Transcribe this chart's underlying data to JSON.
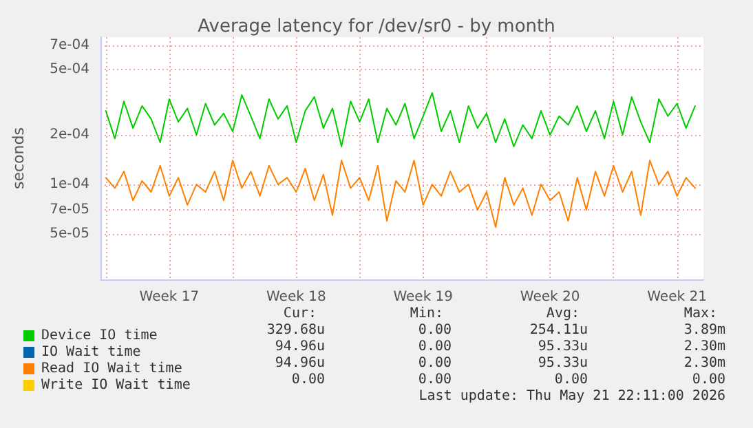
{
  "chart_data": {
    "type": "line",
    "title": "Average latency for /dev/sr0 - by month",
    "ylabel": "seconds",
    "log": "y",
    "grid": true,
    "legend": "bottom left",
    "marker": "none",
    "line_style": "solid",
    "x": [
      "2026-04-20T00:00",
      "2026-04-20T12:00",
      "2026-04-21T00:00",
      "2026-04-21T12:00",
      "2026-04-22T00:00",
      "2026-04-22T12:00",
      "2026-04-23T00:00",
      "2026-04-23T12:00",
      "2026-04-24T00:00",
      "2026-04-24T12:00",
      "2026-04-25T00:00",
      "2026-04-25T12:00",
      "2026-04-26T00:00",
      "2026-04-26T12:00",
      "2026-04-27T00:00",
      "2026-04-27T12:00",
      "2026-04-28T00:00",
      "2026-04-28T12:00",
      "2026-04-29T00:00",
      "2026-04-29T12:00",
      "2026-04-30T00:00",
      "2026-04-30T12:00",
      "2026-05-01T00:00",
      "2026-05-01T12:00",
      "2026-05-02T00:00",
      "2026-05-02T12:00",
      "2026-05-03T00:00",
      "2026-05-03T12:00",
      "2026-05-04T00:00",
      "2026-05-04T12:00",
      "2026-05-05T00:00",
      "2026-05-05T12:00",
      "2026-05-06T00:00",
      "2026-05-06T12:00",
      "2026-05-07T00:00",
      "2026-05-07T12:00",
      "2026-05-08T00:00",
      "2026-05-08T12:00",
      "2026-05-09T00:00",
      "2026-05-09T12:00",
      "2026-05-10T00:00",
      "2026-05-10T12:00",
      "2026-05-11T00:00",
      "2026-05-11T12:00",
      "2026-05-12T00:00",
      "2026-05-12T12:00",
      "2026-05-13T00:00",
      "2026-05-13T12:00",
      "2026-05-14T00:00",
      "2026-05-14T12:00",
      "2026-05-15T00:00",
      "2026-05-15T12:00",
      "2026-05-16T00:00",
      "2026-05-16T12:00",
      "2026-05-17T00:00",
      "2026-05-17T12:00",
      "2026-05-18T00:00",
      "2026-05-18T12:00",
      "2026-05-19T00:00",
      "2026-05-19T12:00",
      "2026-05-20T00:00",
      "2026-05-20T12:00",
      "2026-05-21T00:00",
      "2026-05-21T12:00",
      "2026-05-22T00:00",
      "2026-05-22T12:00"
    ],
    "xlim": [
      "2026-04-19T17:00",
      "2026-05-22T23:00"
    ],
    "xticks": [
      {
        "value": "2026-04-20T00:00",
        "label": null
      },
      {
        "value": "2026-04-23T12:00",
        "label": "Week 17"
      },
      {
        "value": "2026-04-27T00:00",
        "label": null
      },
      {
        "value": "2026-04-30T12:00",
        "label": "Week 18"
      },
      {
        "value": "2026-05-04T00:00",
        "label": null
      },
      {
        "value": "2026-05-07T12:00",
        "label": "Week 19"
      },
      {
        "value": "2026-05-11T00:00",
        "label": null
      },
      {
        "value": "2026-05-14T12:00",
        "label": "Week 20"
      },
      {
        "value": "2026-05-18T00:00",
        "label": null
      },
      {
        "value": "2026-05-21T12:00",
        "label": "Week 21"
      }
    ],
    "ylim": [
      2.65e-05,
      0.000785
    ],
    "yticks": [
      {
        "value": 5e-05,
        "label": "5e-05"
      },
      {
        "value": 7e-05,
        "label": "7e-05"
      },
      {
        "value": 0.0001,
        "label": "1e-04"
      },
      {
        "value": 0.0002,
        "label": "2e-04"
      },
      {
        "value": 0.0005,
        "label": "5e-04"
      },
      {
        "value": 0.0007,
        "label": "7e-04"
      }
    ],
    "series": [
      {
        "name": "Device IO time",
        "color": "#00cc00",
        "values": [
          0.00028,
          0.00019,
          0.00032,
          0.00022,
          0.0003,
          0.00025,
          0.00018,
          0.00033,
          0.00024,
          0.00029,
          0.0002,
          0.00031,
          0.00023,
          0.00027,
          0.00021,
          0.00035,
          0.00026,
          0.00019,
          0.00033,
          0.00025,
          0.0003,
          0.00018,
          0.00028,
          0.00034,
          0.00022,
          0.00029,
          0.00017,
          0.00032,
          0.00024,
          0.00033,
          0.00018,
          0.00029,
          0.00023,
          0.00031,
          0.00019,
          0.00026,
          0.00036,
          0.00021,
          0.00028,
          0.00018,
          0.0003,
          0.00022,
          0.00027,
          0.00018,
          0.00025,
          0.00017,
          0.00023,
          0.00019,
          0.00028,
          0.0002,
          0.00026,
          0.00023,
          0.0003,
          0.00021,
          0.00028,
          0.00019,
          0.00032,
          0.0002,
          0.00034,
          0.00024,
          0.00018,
          0.00033,
          0.00026,
          0.00031,
          0.00022,
          0.0003
        ]
      },
      {
        "name": "IO Wait time",
        "color": "#0066b3",
        "values": [
          null,
          null,
          null,
          null,
          null,
          null,
          null,
          null,
          null,
          null,
          null,
          null,
          null,
          null,
          null,
          null,
          null,
          null,
          null,
          null,
          null,
          null,
          null,
          null,
          null,
          null,
          null,
          null,
          null,
          null,
          null,
          null,
          null,
          null,
          null,
          null,
          null,
          null,
          null,
          null,
          null,
          null,
          null,
          null,
          null,
          null,
          null,
          null,
          null,
          null,
          null,
          null,
          null,
          null,
          null,
          null,
          null,
          null,
          null,
          null,
          null,
          null,
          null,
          null,
          null,
          null
        ]
      },
      {
        "name": "Read IO Wait time",
        "color": "#ff8000",
        "values": [
          0.00011,
          9.5e-05,
          0.00012,
          8e-05,
          0.000105,
          9e-05,
          0.00013,
          8.5e-05,
          0.00011,
          7.5e-05,
          0.0001,
          9e-05,
          0.00012,
          8e-05,
          0.00014,
          9.5e-05,
          0.00012,
          8.5e-05,
          0.00013,
          0.0001,
          0.00011,
          9e-05,
          0.000125,
          8e-05,
          0.000115,
          6.5e-05,
          0.00014,
          9.5e-05,
          0.00011,
          8e-05,
          0.00013,
          6e-05,
          0.000105,
          9e-05,
          0.00014,
          7.5e-05,
          0.0001,
          8.5e-05,
          0.00012,
          9e-05,
          0.0001,
          7e-05,
          9e-05,
          5.5e-05,
          0.00011,
          7.5e-05,
          9.5e-05,
          6.5e-05,
          0.0001,
          8e-05,
          9e-05,
          6e-05,
          0.00011,
          7e-05,
          0.00012,
          8.5e-05,
          0.00013,
          9e-05,
          0.00012,
          6.5e-05,
          0.00014,
          0.0001,
          0.00012,
          8.5e-05,
          0.00011,
          9.5e-05
        ]
      },
      {
        "name": "Write IO Wait time",
        "color": "#ffcc00",
        "values": [
          null,
          null,
          null,
          null,
          null,
          null,
          null,
          null,
          null,
          null,
          null,
          null,
          null,
          null,
          null,
          null,
          null,
          null,
          null,
          null,
          null,
          null,
          null,
          null,
          null,
          null,
          null,
          null,
          null,
          null,
          null,
          null,
          null,
          null,
          null,
          null,
          null,
          null,
          null,
          null,
          null,
          null,
          null,
          null,
          null,
          null,
          null,
          null,
          null,
          null,
          null,
          null,
          null,
          null,
          null,
          null,
          null,
          null,
          null,
          null,
          null,
          null,
          null,
          null,
          null,
          null
        ]
      }
    ],
    "annotations": [
      "Cur:",
      "Min:",
      "Avg:",
      "Max:",
      "329.68u",
      "0.00",
      "254.11u",
      "3.89m",
      "94.96u",
      "0.00",
      "95.33u",
      "2.30m",
      "94.96u",
      "0.00",
      "95.33u",
      "2.30m",
      "0.00",
      "0.00",
      "0.00",
      "0.00",
      "Last update: Thu May 21 22:11:00 2026"
    ]
  }
}
